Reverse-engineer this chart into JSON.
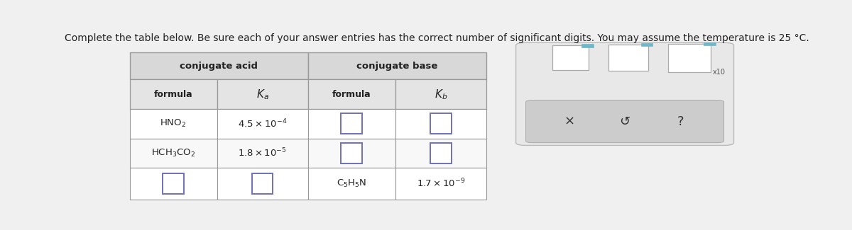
{
  "title": "Complete the table below. Be sure each of your answer entries has the correct number of significant digits. You may assume the temperature is 25 °C.",
  "title_fontsize": 10,
  "bg_color": "#f0f0f0",
  "table_bg": "#ffffff",
  "header1_bg": "#d8d8d8",
  "header2_bg": "#e4e4e4",
  "data_bg": "#f8f8f8",
  "border_color": "#999999",
  "input_box_color": "#7070bb",
  "widget_bg": "#e8e8e8",
  "widget_border": "#bbbbbb",
  "widget_bottom_bg": "#cccccc",
  "teal_color": "#70b8c8",
  "row1_text_col1": "HNO$_2$",
  "row1_text_col2": "$4.5 \\times 10^{-4}$",
  "row2_text_col1": "HCH$_3$CO$_2$",
  "row2_text_col2": "$1.8 \\times 10^{-5}$",
  "row3_text_col3": "C$_5$H$_5$N",
  "row3_text_col4": "$1.7 \\times 10^{-9}$",
  "header_conj_acid": "conjugate acid",
  "header_conj_base": "conjugate base",
  "header_formula": "formula",
  "btn_x": "×",
  "btn_undo": "↺",
  "btn_help": "?"
}
